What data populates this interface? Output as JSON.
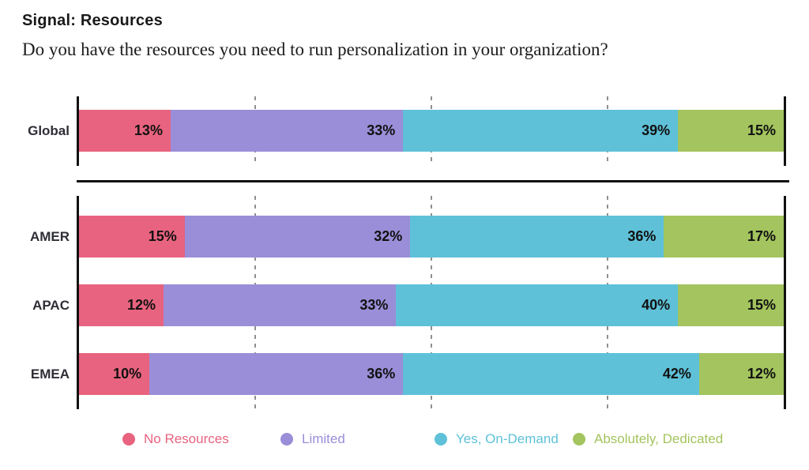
{
  "header": {
    "title": "Signal: Resources",
    "subtitle": "Do you have the resources you need to run personalization in your organization?"
  },
  "chart_data": {
    "type": "bar",
    "orientation": "horizontal",
    "stacked": true,
    "value_unit": "%",
    "xlim": [
      0,
      100
    ],
    "gridlines_pct": [
      25,
      50,
      75
    ],
    "grid": "dashed-vertical",
    "legend_position": "bottom",
    "categories": [
      "Global",
      "AMER",
      "APAC",
      "EMEA"
    ],
    "row_groups": [
      [
        "Global"
      ],
      [
        "AMER",
        "APAC",
        "EMEA"
      ]
    ],
    "series": [
      {
        "name": "No Resources",
        "color": "#E8637F",
        "values": [
          13,
          15,
          12,
          10
        ]
      },
      {
        "name": "Limited",
        "color": "#9A8ED8",
        "values": [
          33,
          32,
          33,
          36
        ]
      },
      {
        "name": "Yes, On-Demand",
        "color": "#5EC1D8",
        "values": [
          39,
          36,
          40,
          42
        ]
      },
      {
        "name": "Absolutely, Dedicated",
        "color": "#A3C45E",
        "values": [
          15,
          17,
          15,
          12
        ]
      }
    ],
    "rows_as_labeled": {
      "Global": {
        "No Resources": "13%",
        "Limited": "33%",
        "Yes, On-Demand": "39%",
        "Absolutely, Dedicated": "15%"
      },
      "AMER": {
        "No Resources": "15%",
        "Limited": "32%",
        "Yes, On-Demand": "36%",
        "Absolutely, Dedicated": "17%"
      },
      "APAC": {
        "No Resources": "12%",
        "Limited": "33%",
        "Yes, On-Demand": "40%",
        "Absolutely, Dedicated": "15%"
      },
      "EMEA": {
        "No Resources": "10%",
        "Limited": "36%",
        "Yes, On-Demand": "42%",
        "Absolutely, Dedicated": "12%"
      }
    },
    "colors": {
      "axis": "#111111",
      "gridline": "#8f8f8f",
      "value_label_text": "#111111",
      "category_label_text": "#2e2e36"
    }
  }
}
